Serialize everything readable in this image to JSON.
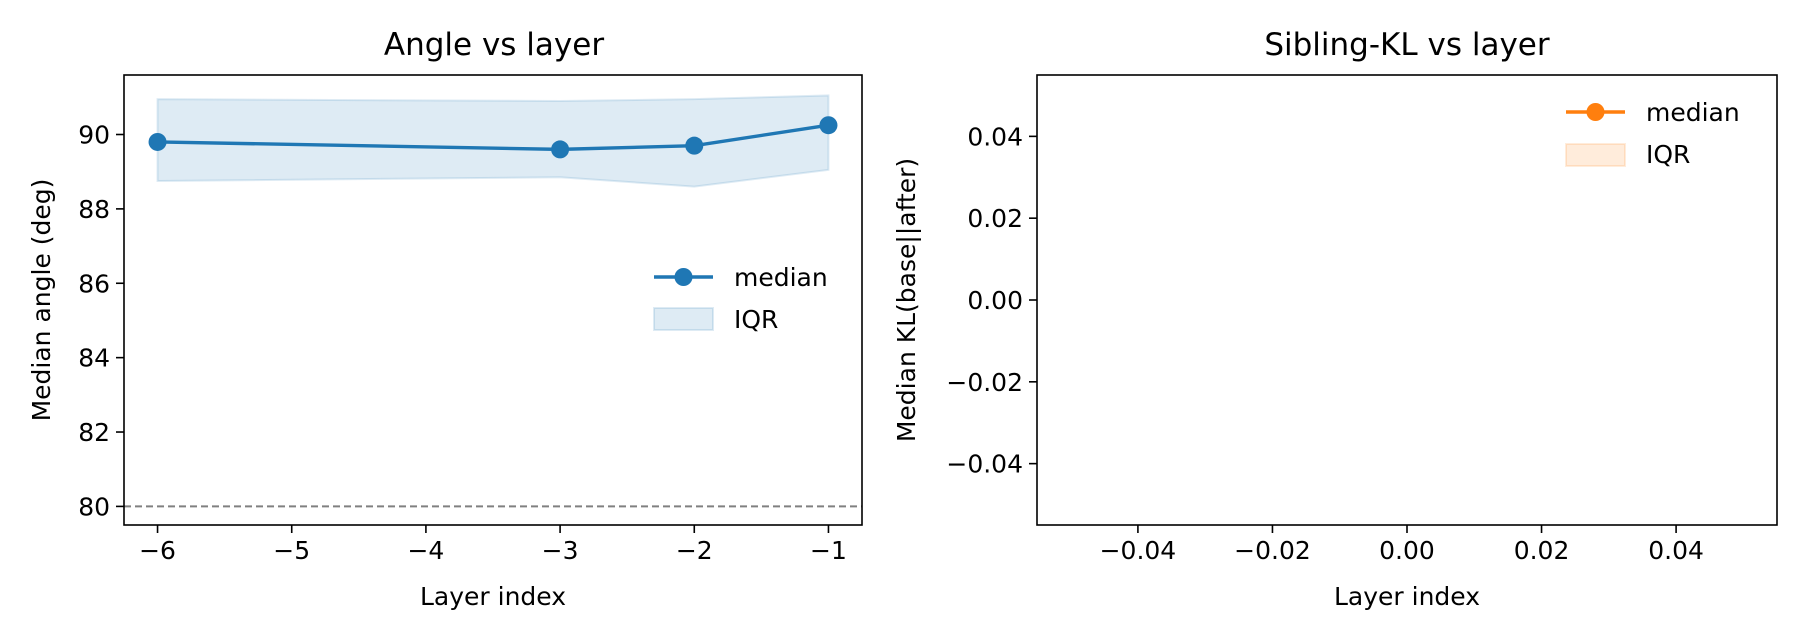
{
  "chart_data": [
    {
      "type": "line",
      "title": "Angle vs layer",
      "xlabel": "Layer index",
      "ylabel": "Median angle (deg)",
      "xlim": [
        -6.25,
        -0.75
      ],
      "ylim": [
        79.5,
        91.6
      ],
      "xticks": [
        -6,
        -5,
        -4,
        -3,
        -2,
        -1
      ],
      "xtick_labels": [
        "−6",
        "−5",
        "−4",
        "−3",
        "−2",
        "−1"
      ],
      "yticks": [
        80,
        82,
        84,
        86,
        88,
        90
      ],
      "ytick_labels": [
        "80",
        "82",
        "84",
        "86",
        "88",
        "90"
      ],
      "grid": false,
      "legend": {
        "placement": "center-right",
        "entries": [
          "median",
          "IQR"
        ]
      },
      "reference_line": {
        "y": 80,
        "style": "dashed",
        "color": "#808080"
      },
      "series": [
        {
          "name": "median",
          "color": "#1f77b4",
          "x": [
            -6,
            -3,
            -2,
            -1
          ],
          "values": [
            89.8,
            89.6,
            89.7,
            90.25
          ]
        }
      ],
      "band": {
        "name": "IQR",
        "color": "#1f77b4",
        "x": [
          -6,
          -3,
          -2,
          -1
        ],
        "lower": [
          88.75,
          88.85,
          88.6,
          89.05
        ],
        "upper": [
          90.95,
          90.9,
          90.95,
          91.05
        ]
      }
    },
    {
      "type": "line",
      "title": "Sibling-KL vs layer",
      "xlabel": "Layer index",
      "ylabel": "Median KL(base||after)",
      "xlim": [
        -0.055,
        0.055
      ],
      "ylim": [
        -0.055,
        0.055
      ],
      "xticks": [
        -0.04,
        -0.02,
        0.0,
        0.02,
        0.04
      ],
      "xtick_labels": [
        "−0.04",
        "−0.02",
        "0.00",
        "0.02",
        "0.04"
      ],
      "yticks": [
        -0.04,
        -0.02,
        0.0,
        0.02,
        0.04
      ],
      "ytick_labels": [
        "−0.04",
        "−0.02",
        "0.00",
        "0.02",
        "0.04"
      ],
      "grid": false,
      "legend": {
        "placement": "upper-right",
        "entries": [
          "median",
          "IQR"
        ]
      },
      "series": [
        {
          "name": "median",
          "color": "#ff7f0e",
          "x": [],
          "values": []
        }
      ],
      "band": {
        "name": "IQR",
        "color": "#ff7f0e",
        "x": [],
        "lower": [],
        "upper": []
      }
    }
  ]
}
